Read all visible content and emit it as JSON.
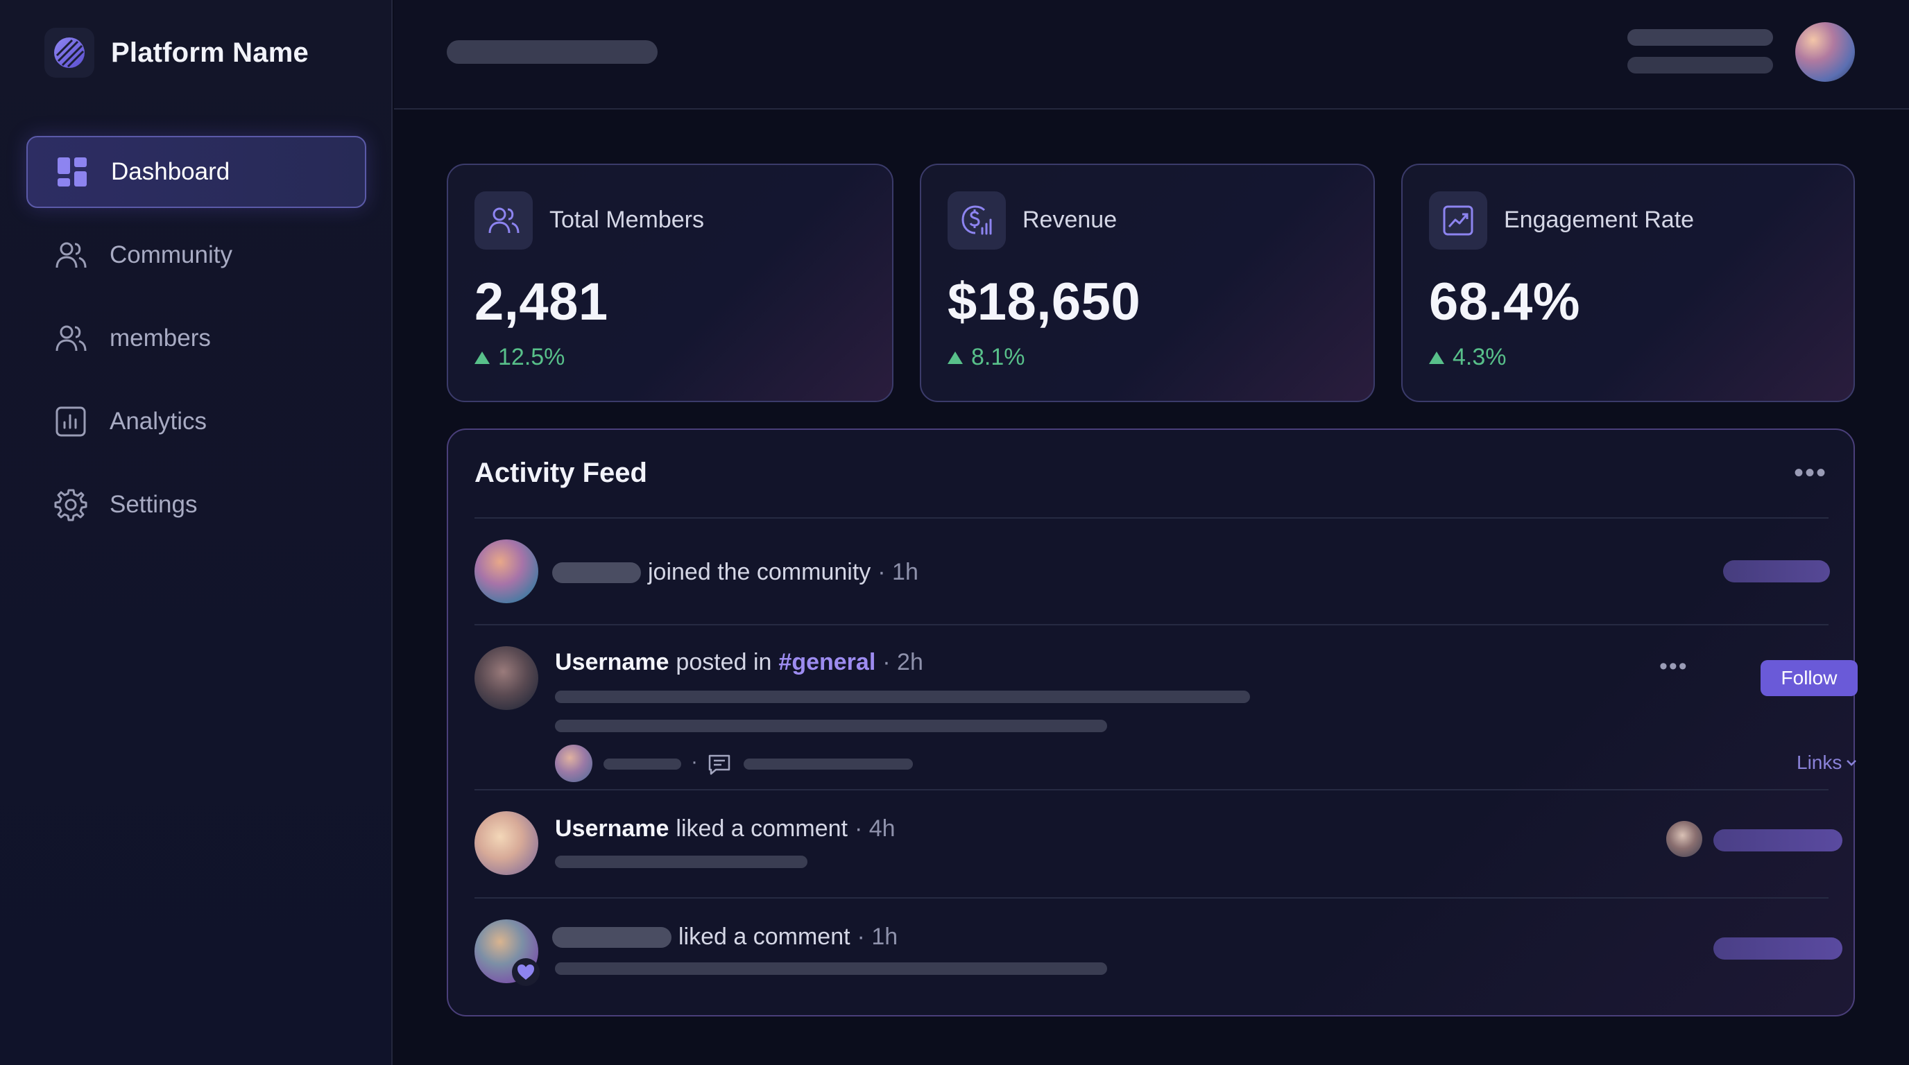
{
  "brand": {
    "name": "Platform Name",
    "logo_icon": "platform-logo-icon"
  },
  "nav": [
    {
      "label": "Dashboard",
      "icon": "dashboard-grid-icon",
      "active": true
    },
    {
      "label": "Community",
      "icon": "users-icon",
      "active": false
    },
    {
      "label": "members",
      "icon": "users-icon",
      "active": false
    },
    {
      "label": "Analytics",
      "icon": "bar-chart-icon",
      "active": false
    },
    {
      "label": "Settings",
      "icon": "gear-icon",
      "active": false
    }
  ],
  "stats": [
    {
      "title": "Total Members",
      "value": "2,481",
      "delta": "12.5%",
      "icon": "users-icon"
    },
    {
      "title": "Revenue",
      "value": "$18,650",
      "delta": "8.1%",
      "icon": "revenue-icon"
    },
    {
      "title": "Engagement Rate",
      "value": "68.4%",
      "delta": "4.3%",
      "icon": "trend-chart-icon"
    }
  ],
  "feed": {
    "title": "Activity Feed",
    "items": [
      {
        "username": "",
        "action": "joined the community",
        "time": "· 1h"
      },
      {
        "username": "Username",
        "action": "posted in",
        "channel": "#general",
        "time": "· 2h",
        "follow_label": "Follow",
        "links_label": "Links",
        "separator": "·"
      },
      {
        "username": "Username",
        "action": "liked a comment",
        "time": "· 4h"
      },
      {
        "username": "",
        "action": "liked a comment",
        "time": "· 1h"
      }
    ]
  },
  "colors": {
    "accent": "#6a5ad8",
    "positive": "#58c08a",
    "channel": "#9d8cf0"
  }
}
